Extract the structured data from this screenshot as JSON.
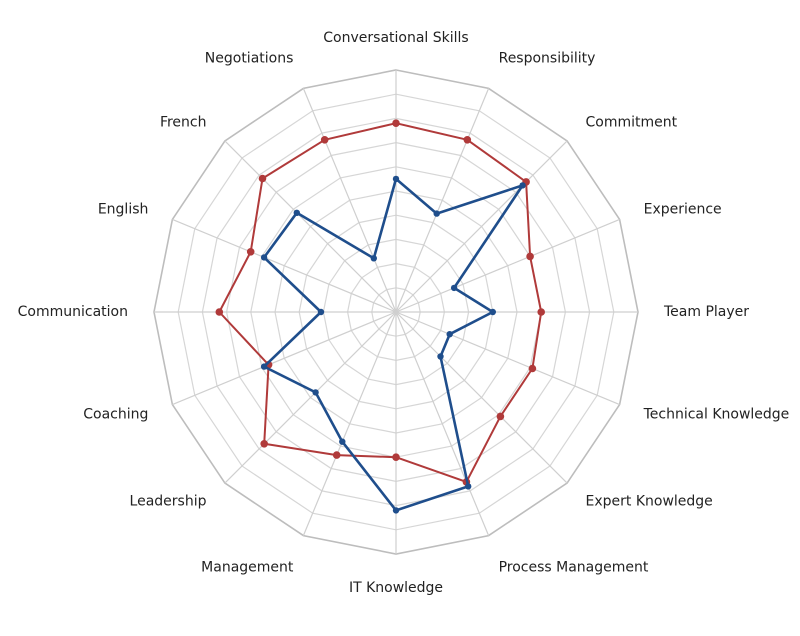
{
  "chart_data": {
    "type": "radar",
    "title": "",
    "axes": [
      "Conversational Skills",
      "Responsibility",
      "Commitment",
      "Experience",
      "Team Player",
      "Technical Knowledge",
      "Expert Knowledge",
      "Process Management",
      "IT Knowledge",
      "Management",
      "Leadership",
      "Coaching",
      "Communication",
      "English",
      "French",
      "Negotiations"
    ],
    "rlim": [
      0,
      10
    ],
    "grid_rings": 10,
    "grid": true,
    "legend": "none",
    "series": [
      {
        "color": "#b03a3a",
        "values": [
          7.8,
          7.7,
          7.6,
          6.0,
          6.0,
          6.1,
          6.1,
          7.6,
          6.0,
          6.4,
          7.7,
          5.7,
          7.3,
          6.5,
          7.8,
          7.7
        ]
      },
      {
        "color": "#1f4e8c",
        "values": [
          5.5,
          4.4,
          7.4,
          2.6,
          4.0,
          2.4,
          2.6,
          7.8,
          8.2,
          5.8,
          4.7,
          5.9,
          3.1,
          5.9,
          5.8,
          2.4
        ]
      }
    ]
  }
}
